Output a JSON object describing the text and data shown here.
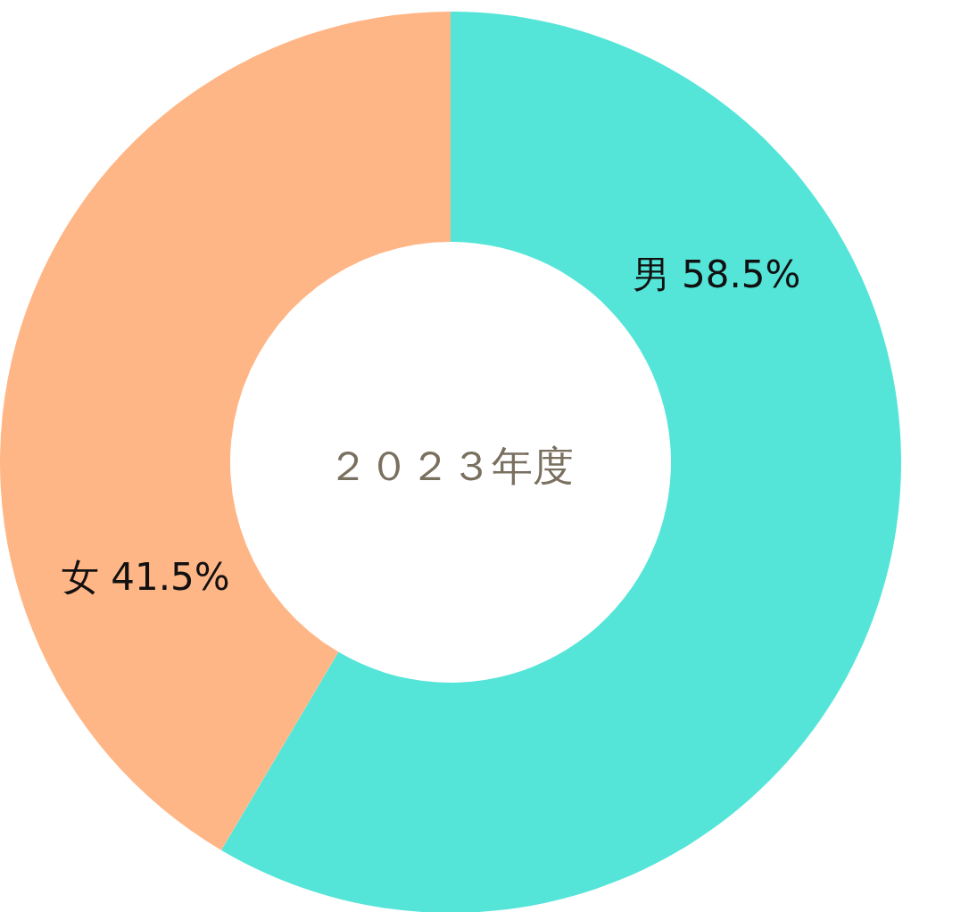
{
  "chart_data": {
    "type": "donut",
    "title": "２０２３年度",
    "categories": [
      "男",
      "女"
    ],
    "values": [
      58.5,
      41.5
    ],
    "value_labels": [
      "58.5%",
      "41.5%"
    ],
    "colors": [
      "#55e5d8",
      "#ffb686"
    ]
  }
}
